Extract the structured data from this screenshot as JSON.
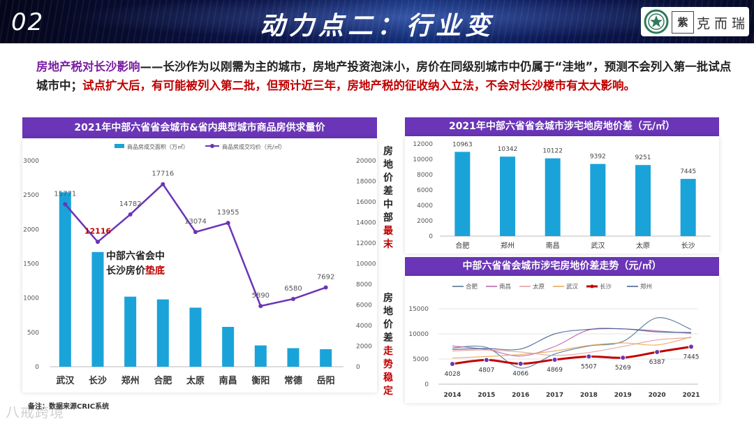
{
  "header": {
    "slide_number": "02",
    "title": "动力点二：行业变",
    "logo_seal_text": "紫",
    "logo_text": "克而瑞"
  },
  "summary": {
    "highlight": "房地产税对长沙影响",
    "body": "——长沙作为以刚需为主的城市，房地产投资泡沫小，房价在同级别城市中仍属于“洼地”，预测不会列入第一批试点城市中；",
    "red": "试点扩大后，有可能被列入第二批，但预计近三年，房地产税的征收纳入立法，不会对长沙楼市有太大影响。"
  },
  "side_labels": {
    "top_plain": [
      "房",
      "地",
      "价",
      "差",
      "中",
      "部"
    ],
    "top_red": [
      "最",
      "末"
    ],
    "bottom_plain": [
      "房",
      "地",
      "价",
      "差"
    ],
    "bottom_red": [
      "走",
      "势",
      "稳",
      "定"
    ]
  },
  "annotation": {
    "line1": "中部六省会中",
    "line2_plain": "长沙房价",
    "line2_red": "垫底"
  },
  "footnote": "备注：数据来源CRIC系统",
  "watermark": "八戒跨境",
  "colors": {
    "bar": "#1aa3d9",
    "line": "#6a35b6",
    "header": "#6a35b6",
    "red": "#c00000",
    "changsha": "#c00000"
  },
  "chart_data": [
    {
      "type": "bar",
      "title": "2021年中部六省省会城市&省内典型城市商品房供求量价",
      "categories": [
        "武汉",
        "长沙",
        "郑州",
        "合肥",
        "太原",
        "南昌",
        "衡阳",
        "常德",
        "岳阳"
      ],
      "series": [
        {
          "name": "商品房成交面积（万㎡）",
          "axis": "left",
          "values": [
            2540,
            1670,
            1020,
            980,
            860,
            580,
            310,
            270,
            255
          ]
        },
        {
          "name": "商品房成交均价（元/㎡）",
          "axis": "right",
          "type": "line",
          "values": [
            15771,
            12116,
            14782,
            17716,
            13074,
            13955,
            5890,
            6580,
            7692
          ]
        }
      ],
      "y_left": {
        "min": 0,
        "max": 3000,
        "ticks": [
          0,
          500,
          1000,
          1500,
          2000,
          2500,
          3000
        ]
      },
      "y_right": {
        "min": 0,
        "max": 20000,
        "ticks": [
          0,
          2000,
          4000,
          6000,
          8000,
          10000,
          12000,
          14000,
          16000,
          18000,
          20000
        ]
      },
      "value_labels": [
        "15771",
        "12116",
        "14782",
        "17716",
        "13074",
        "13955",
        "5890",
        "6580",
        "7692"
      ],
      "legend": "top"
    },
    {
      "type": "bar",
      "title": "2021年中部六省省会城市涉宅地房地价差（元/㎡）",
      "categories": [
        "合肥",
        "郑州",
        "南昌",
        "武汉",
        "太原",
        "长沙"
      ],
      "values": [
        10963,
        10342,
        10122,
        9392,
        9251,
        7445
      ],
      "ylim": [
        0,
        12000
      ],
      "ticks": [
        0,
        2000,
        4000,
        6000,
        8000,
        10000,
        12000
      ]
    },
    {
      "type": "line",
      "title": "中部六省省会城市涉宅房地价差走势（元/㎡）",
      "x": [
        "2014",
        "2015",
        "2016",
        "2017",
        "2018",
        "2019",
        "2020",
        "2021"
      ],
      "ylim": [
        0,
        15000
      ],
      "ticks": [
        0,
        5000,
        10000,
        15000
      ],
      "series": [
        {
          "name": "合肥",
          "color": "#4a6e8e",
          "values": [
            7200,
            7300,
            3200,
            6000,
            7600,
            8500,
            13200,
            10900
          ]
        },
        {
          "name": "南昌",
          "color": "#b45ea6",
          "values": [
            7600,
            6900,
            5600,
            7500,
            10800,
            11000,
            10600,
            10100
          ]
        },
        {
          "name": "太原",
          "color": "#e09a9a",
          "values": [
            6600,
            6800,
            6400,
            5700,
            6300,
            7500,
            8800,
            9250
          ]
        },
        {
          "name": "武汉",
          "color": "#e8a24a",
          "values": [
            5200,
            5500,
            5900,
            6600,
            7700,
            8200,
            7800,
            9400
          ]
        },
        {
          "name": "长沙",
          "color": "#c00000",
          "values": [
            4028,
            4807,
            4066,
            4869,
            5507,
            5269,
            6387,
            7445
          ],
          "labels": [
            "4028",
            "4807",
            "4066",
            "4869",
            "5507",
            "5269",
            "6387",
            "7445"
          ]
        },
        {
          "name": "郑州",
          "color": "#3a5b8c",
          "values": [
            6900,
            7100,
            7000,
            10000,
            10900,
            11000,
            10400,
            10300
          ]
        }
      ]
    }
  ]
}
